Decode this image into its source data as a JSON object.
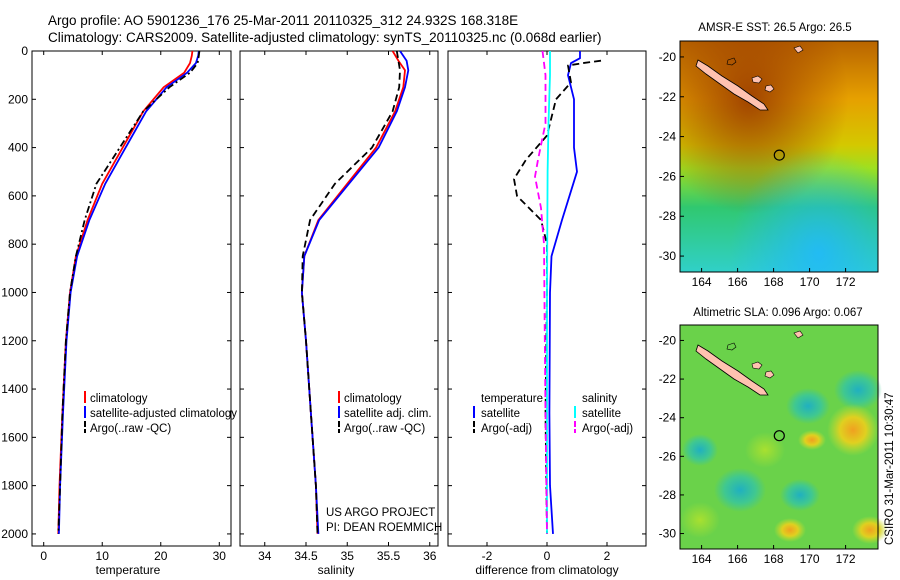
{
  "header": {
    "title_line1": "Argo profile: AO 5901236_176 25-Mar-2011 20110325_312 24.932S 168.318E",
    "title_line2": "Climatology: CARS2009. Satellite-adjusted climatology: synTS_20110325.nc (0.068d earlier)"
  },
  "colors": {
    "climatology": "#ff0000",
    "satellite": "#0000ff",
    "argo": "#000000",
    "sat_salinity": "#00ffff",
    "argo_salinity": "#ff00ff"
  },
  "depth_axis": {
    "ylim": [
      0,
      2050
    ],
    "ticks": [
      "0",
      "200",
      "400",
      "600",
      "800",
      "1000",
      "1200",
      "1400",
      "1600",
      "1800",
      "2000"
    ]
  },
  "chart_data": [
    {
      "type": "line",
      "panel": "temperature",
      "xlabel": "temperature",
      "ylabel": "",
      "xlim": [
        -2,
        32
      ],
      "ylim": [
        2050,
        0
      ],
      "x_ticks": [
        "0",
        "10",
        "20",
        "30"
      ],
      "legend": [
        "climatology",
        "satellite-adjusted climatology",
        "Argo(..raw -QC)"
      ],
      "legend_position": "lower-center",
      "series": [
        {
          "name": "climatology",
          "color": "#ff0000",
          "style": "solid",
          "points": [
            [
              25.4,
              0
            ],
            [
              25.3,
              20
            ],
            [
              25.0,
              50
            ],
            [
              24.0,
              90
            ],
            [
              20.5,
              150
            ],
            [
              17.0,
              250
            ],
            [
              13.5,
              400
            ],
            [
              10.0,
              550
            ],
            [
              7.5,
              700
            ],
            [
              5.5,
              850
            ],
            [
              4.5,
              1000
            ],
            [
              3.8,
              1200
            ],
            [
              3.2,
              1500
            ],
            [
              2.7,
              1800
            ],
            [
              2.5,
              2000
            ]
          ]
        },
        {
          "name": "satellite-adjusted climatology",
          "color": "#0000ff",
          "style": "solid",
          "points": [
            [
              26.5,
              0
            ],
            [
              26.4,
              20
            ],
            [
              26.0,
              50
            ],
            [
              24.5,
              90
            ],
            [
              21.0,
              150
            ],
            [
              17.5,
              250
            ],
            [
              14.0,
              400
            ],
            [
              10.5,
              550
            ],
            [
              7.8,
              700
            ],
            [
              5.7,
              850
            ],
            [
              4.6,
              1000
            ],
            [
              3.9,
              1200
            ],
            [
              3.3,
              1500
            ],
            [
              2.8,
              1800
            ],
            [
              2.6,
              2000
            ]
          ]
        },
        {
          "name": "Argo(..raw -QC)",
          "color": "#000000",
          "style": "dashdot",
          "points": [
            [
              26.6,
              0
            ],
            [
              26.5,
              20
            ],
            [
              26.3,
              50
            ],
            [
              25.0,
              90
            ],
            [
              21.5,
              150
            ],
            [
              17.0,
              250
            ],
            [
              13.0,
              400
            ],
            [
              9.0,
              550
            ],
            [
              7.0,
              700
            ],
            [
              5.5,
              850
            ],
            [
              4.5,
              1000
            ],
            [
              3.8,
              1200
            ],
            [
              3.2,
              1500
            ],
            [
              2.8,
              1800
            ],
            [
              2.5,
              2000
            ]
          ]
        }
      ]
    },
    {
      "type": "line",
      "panel": "salinity",
      "xlabel": "salinity",
      "ylabel": "",
      "xlim": [
        33.7,
        36.1
      ],
      "ylim": [
        2050,
        0
      ],
      "x_ticks": [
        "34",
        "34.5",
        "35",
        "35.5",
        "36"
      ],
      "legend": [
        "climatology",
        "satellite adj. clim.",
        "Argo(..raw -QC)"
      ],
      "legend_position": "lower-center",
      "annotation": [
        "US ARGO PROJECT",
        "PI: DEAN ROEMMICH"
      ],
      "series": [
        {
          "name": "climatology",
          "color": "#ff0000",
          "style": "solid",
          "points": [
            [
              35.55,
              0
            ],
            [
              35.62,
              40
            ],
            [
              35.7,
              80
            ],
            [
              35.68,
              150
            ],
            [
              35.58,
              250
            ],
            [
              35.35,
              400
            ],
            [
              35.0,
              550
            ],
            [
              34.65,
              700
            ],
            [
              34.48,
              850
            ],
            [
              34.45,
              1000
            ],
            [
              34.5,
              1200
            ],
            [
              34.56,
              1500
            ],
            [
              34.62,
              1800
            ],
            [
              34.64,
              2000
            ]
          ]
        },
        {
          "name": "satellite adj. clim.",
          "color": "#0000ff",
          "style": "solid",
          "points": [
            [
              35.64,
              0
            ],
            [
              35.72,
              40
            ],
            [
              35.74,
              80
            ],
            [
              35.7,
              150
            ],
            [
              35.6,
              250
            ],
            [
              35.38,
              400
            ],
            [
              35.02,
              550
            ],
            [
              34.66,
              700
            ],
            [
              34.48,
              850
            ],
            [
              34.45,
              1000
            ],
            [
              34.5,
              1200
            ],
            [
              34.56,
              1500
            ],
            [
              34.62,
              1800
            ],
            [
              34.65,
              2000
            ]
          ]
        },
        {
          "name": "Argo(..raw -QC)",
          "color": "#000000",
          "style": "dashed",
          "points": [
            [
              35.6,
              0
            ],
            [
              35.62,
              40
            ],
            [
              35.64,
              80
            ],
            [
              35.63,
              150
            ],
            [
              35.55,
              250
            ],
            [
              35.3,
              400
            ],
            [
              34.85,
              550
            ],
            [
              34.55,
              700
            ],
            [
              34.46,
              850
            ],
            [
              34.45,
              1000
            ],
            [
              34.5,
              1200
            ],
            [
              34.56,
              1500
            ],
            [
              34.62,
              1800
            ],
            [
              34.64,
              2000
            ]
          ]
        }
      ]
    },
    {
      "type": "line",
      "panel": "difference",
      "xlabel": "difference from climatology",
      "ylabel": "",
      "xlim": [
        -3.3,
        3.3
      ],
      "ylim": [
        2050,
        0
      ],
      "x_ticks": [
        "-2",
        "0",
        "2"
      ],
      "legend_temperature_title": "temperature",
      "legend_salinity_title": "salinity",
      "legend": [
        "satellite",
        "Argo(-adj)",
        "satellite",
        "Argo(-adj)"
      ],
      "legend_position": "lower-center",
      "series": [
        {
          "name": "temperature satellite",
          "color": "#0000ff",
          "style": "solid",
          "points": [
            [
              1.1,
              0
            ],
            [
              1.1,
              30
            ],
            [
              0.8,
              50
            ],
            [
              0.7,
              100
            ],
            [
              0.9,
              200
            ],
            [
              0.9,
              400
            ],
            [
              1.0,
              500
            ],
            [
              0.5,
              700
            ],
            [
              0.15,
              850
            ],
            [
              0.1,
              1000
            ],
            [
              0.08,
              1500
            ],
            [
              0.1,
              1800
            ],
            [
              0.2,
              2000
            ]
          ]
        },
        {
          "name": "temperature Argo(-adj)",
          "color": "#000000",
          "style": "dashed",
          "points": [
            [
              1.8,
              40
            ],
            [
              1.2,
              50
            ],
            [
              0.7,
              60
            ],
            [
              0.8,
              130
            ],
            [
              0.3,
              200
            ],
            [
              0.0,
              350
            ],
            [
              -0.7,
              450
            ],
            [
              -1.1,
              530
            ],
            [
              -1.0,
              600
            ],
            [
              -0.2,
              700
            ],
            [
              0.0,
              800
            ],
            [
              0.0,
              1000
            ],
            [
              -0.05,
              1500
            ],
            [
              0.0,
              2000
            ]
          ]
        },
        {
          "name": "salinity satellite",
          "color": "#00ffff",
          "style": "solid",
          "points": [
            [
              0.1,
              0
            ],
            [
              0.1,
              100
            ],
            [
              0.05,
              300
            ],
            [
              0.02,
              500
            ],
            [
              0.0,
              1000
            ],
            [
              0.0,
              2000
            ]
          ]
        },
        {
          "name": "salinity Argo(-adj)",
          "color": "#ff00ff",
          "style": "dashed",
          "points": [
            [
              -0.15,
              0
            ],
            [
              -0.05,
              100
            ],
            [
              -0.05,
              300
            ],
            [
              -0.3,
              450
            ],
            [
              -0.4,
              520
            ],
            [
              -0.2,
              650
            ],
            [
              -0.1,
              800
            ],
            [
              -0.08,
              1100
            ],
            [
              -0.05,
              1500
            ],
            [
              0.0,
              2000
            ]
          ]
        }
      ]
    }
  ],
  "maps": [
    {
      "name": "sst",
      "title": "AMSR-E SST: 26.5  Argo: 26.5",
      "x_ticks": [
        "164",
        "166",
        "168",
        "170",
        "172"
      ],
      "y_ticks": [
        "-20",
        "-22",
        "-24",
        "-26",
        "-28",
        "-30"
      ],
      "xlim": [
        162.8,
        173.8
      ],
      "ylim": [
        -30.8,
        -19.2
      ],
      "profile_location": [
        168.318,
        -24.932
      ]
    },
    {
      "name": "sla",
      "title": "Altimetric SLA: 0.096  Argo: 0.067",
      "x_ticks": [
        "164",
        "166",
        "168",
        "170",
        "172"
      ],
      "y_ticks": [
        "-20",
        "-22",
        "-24",
        "-26",
        "-28",
        "-30"
      ],
      "xlim": [
        162.8,
        173.8
      ],
      "ylim": [
        -30.8,
        -19.2
      ],
      "profile_location": [
        168.318,
        -24.932
      ]
    }
  ],
  "footer": {
    "side_label": "CSIRO 31-Mar-2011 10:30:47"
  }
}
